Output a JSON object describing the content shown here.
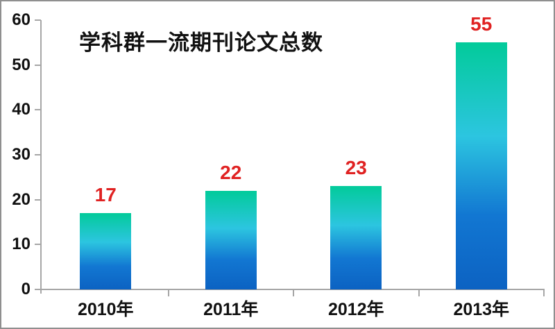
{
  "chart_data": {
    "type": "bar",
    "title": "学科群一流期刊论文总数",
    "categories": [
      "2010年",
      "2011年",
      "2012年",
      "2013年"
    ],
    "values": [
      17,
      22,
      23,
      55
    ],
    "xlabel": "",
    "ylabel": "",
    "ylim": [
      0,
      60
    ],
    "yticks": [
      0,
      10,
      20,
      30,
      40,
      50,
      60
    ],
    "grid": false,
    "legend": "none",
    "bar_value_label_color": "#e02222",
    "bar_gradient": [
      {
        "stop": 0,
        "color": "#02cb9a"
      },
      {
        "stop": 38,
        "color": "#2cc5e0"
      },
      {
        "stop": 70,
        "color": "#1277d2"
      },
      {
        "stop": 100,
        "color": "#0c62c2"
      }
    ],
    "axis_color": "#a6a6a6",
    "text_color": "#111111",
    "background_color": "#ffffff",
    "frame_border_color": "#8f8f8f"
  }
}
